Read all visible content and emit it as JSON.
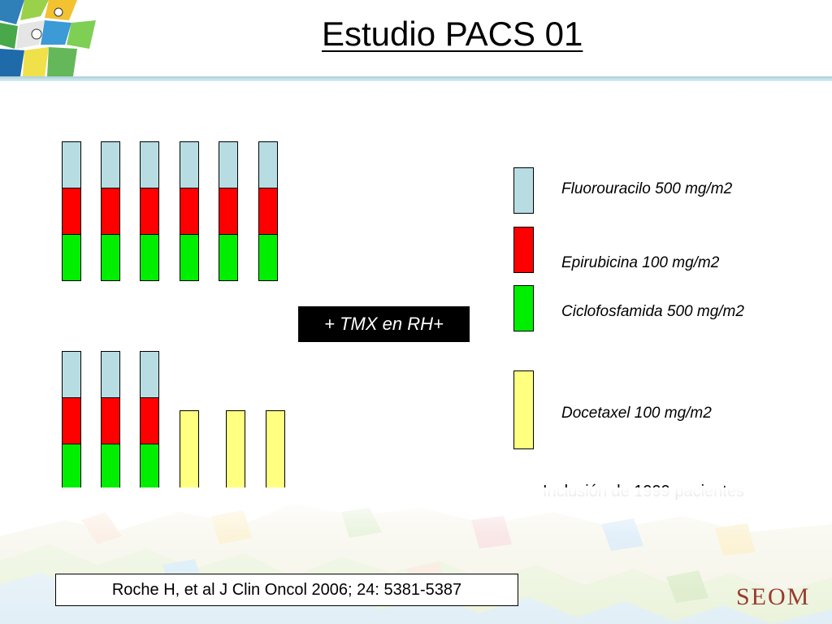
{
  "title": "Estudio PACS 01",
  "colors": {
    "fluorouracilo": "#b7dde3",
    "epirubicina": "#ff0000",
    "ciclofosfamida": "#00ee00",
    "docetaxel": "#ffff80",
    "header_rule": "#a9cfd9"
  },
  "arm_fec": {
    "cycles": 6,
    "regimen": [
      "fluorouracilo",
      "epirubicina",
      "ciclofosfamida"
    ]
  },
  "arm_fec_d": {
    "fec_cycles": 3,
    "docetaxel_cycles": 3
  },
  "tmx_label": "+ TMX en RH+",
  "legend": [
    {
      "drug": "fluorouracilo",
      "label": "Fluorouracilo 500 mg/m2"
    },
    {
      "drug": "epirubicina",
      "label": "Epirubicina 100 mg/m2"
    },
    {
      "drug": "ciclofosfamida",
      "label": "Ciclofosfamida 500 mg/m2"
    },
    {
      "drug": "docetaxel",
      "label": "Docetaxel 100 mg/m2"
    }
  ],
  "inclusion_note": "Inclusión de 1999 pacientes",
  "citation": "Roche H, et al J Clin Oncol 2006; 24: 5381-5387",
  "org_logo_text": "SEOM"
}
